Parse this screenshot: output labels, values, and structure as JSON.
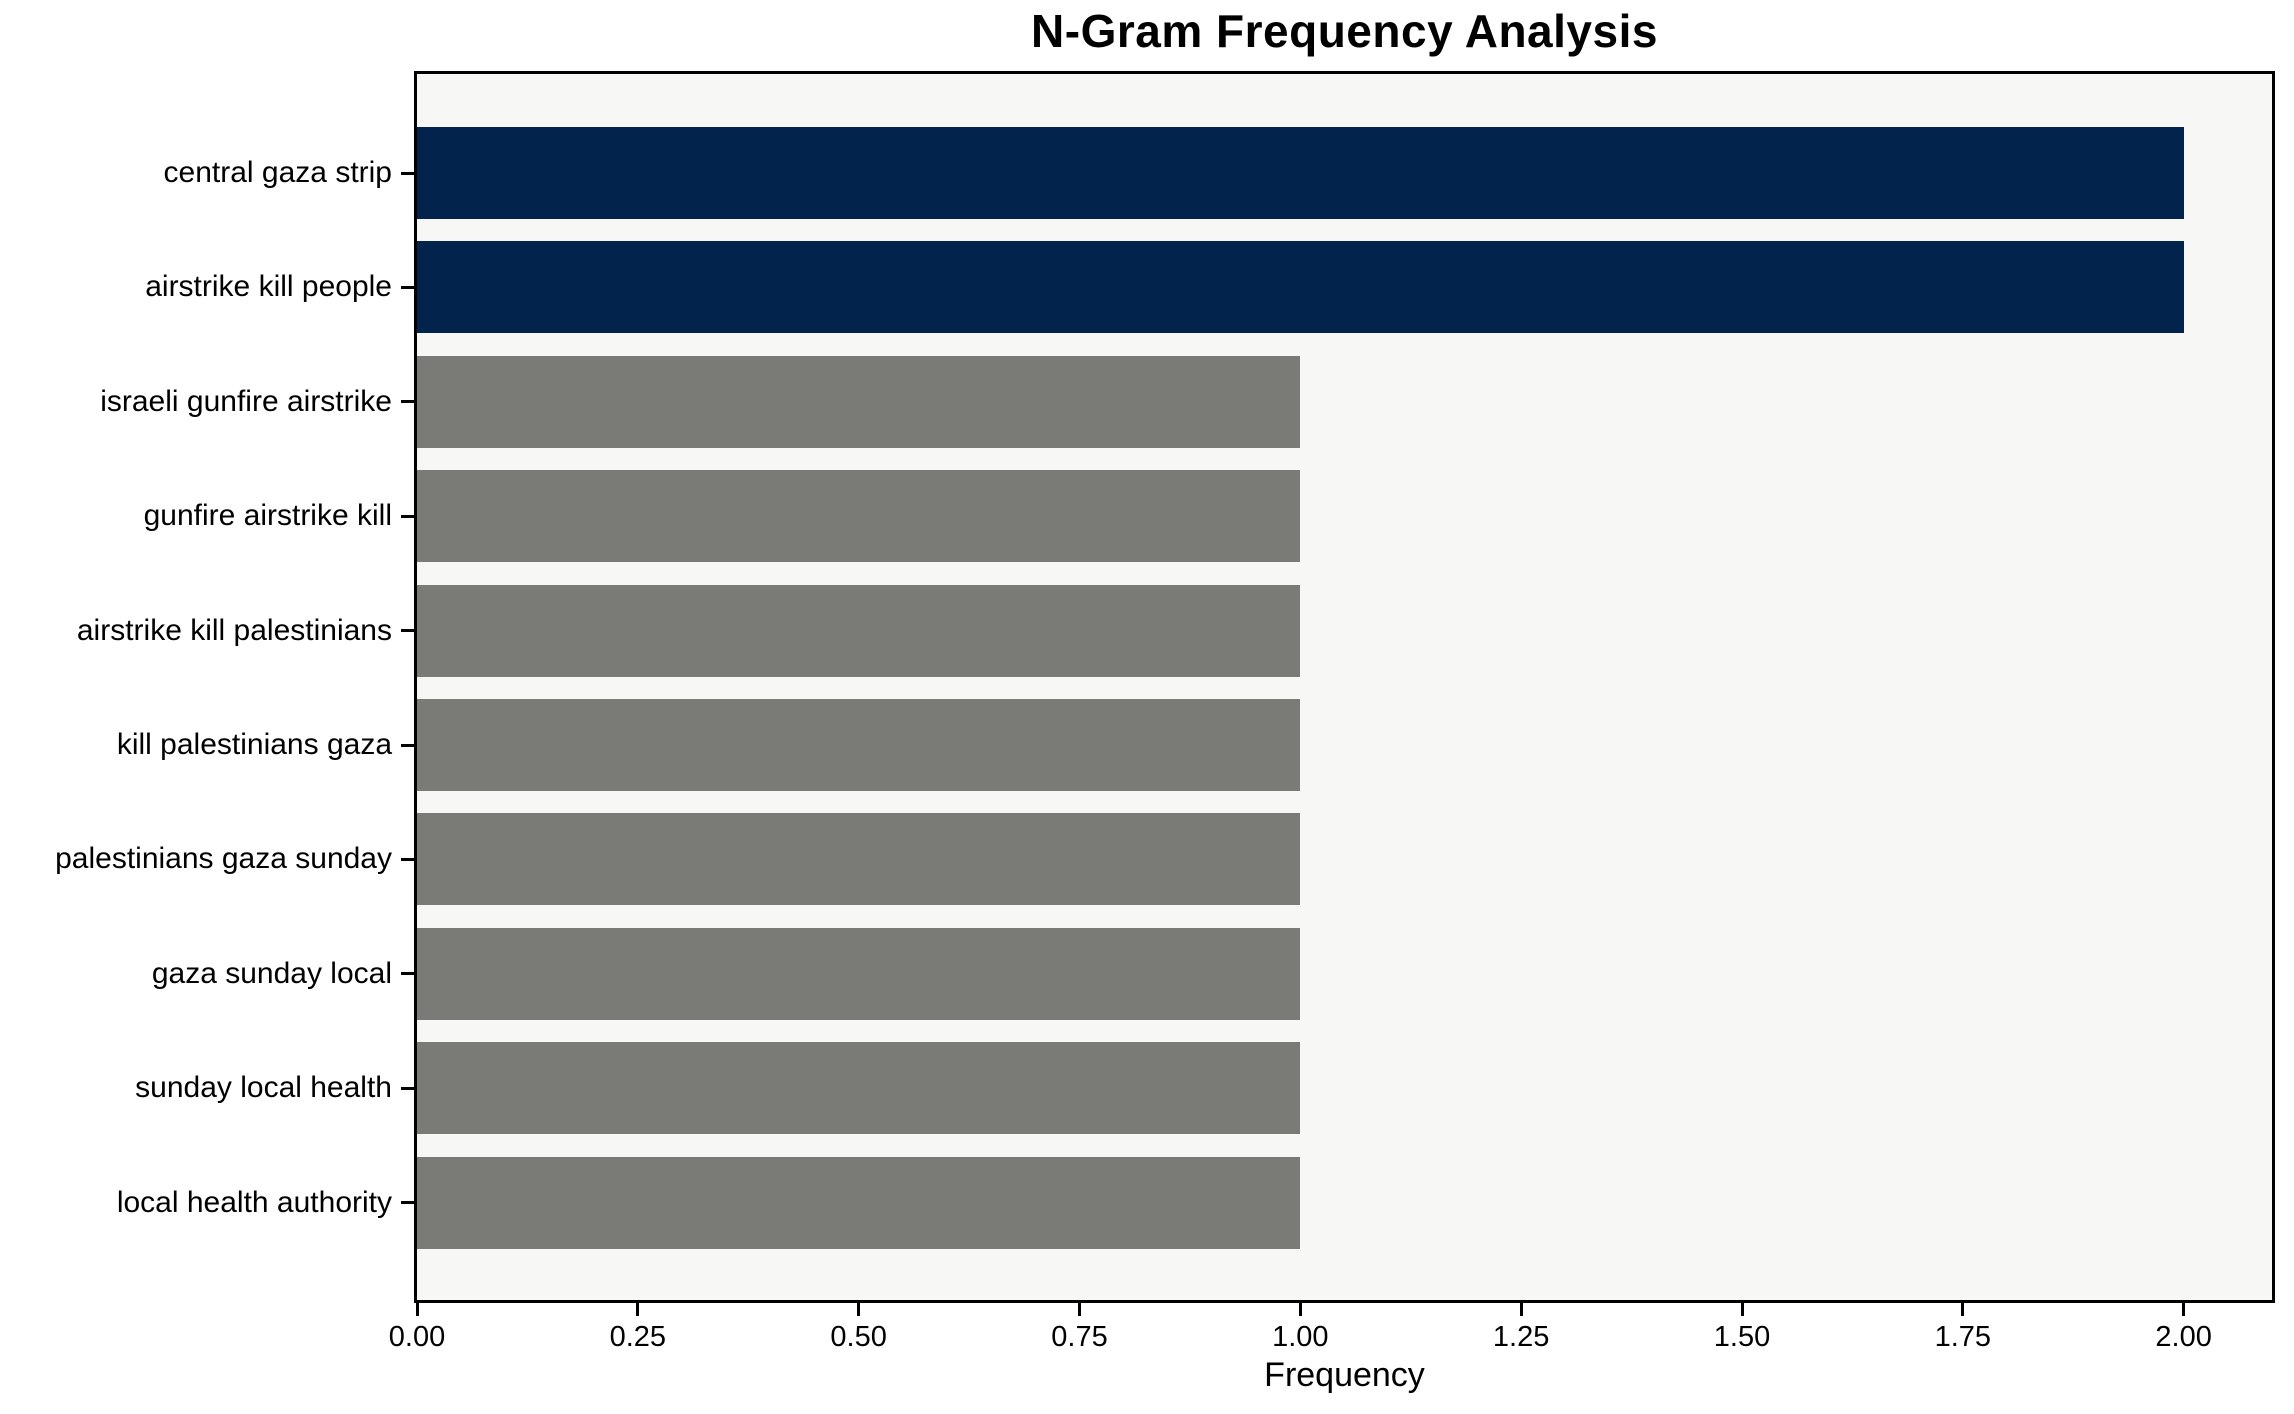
{
  "title": "N-Gram Frequency Analysis",
  "chart_data": {
    "type": "bar",
    "orientation": "horizontal",
    "title": "N-Gram Frequency Analysis",
    "xlabel": "Frequency",
    "ylabel": "",
    "categories": [
      "central gaza strip",
      "airstrike kill people",
      "israeli gunfire airstrike",
      "gunfire airstrike kill",
      "airstrike kill palestinians",
      "kill palestinians gaza",
      "palestinians gaza sunday",
      "gaza sunday local",
      "sunday local health",
      "local health authority"
    ],
    "values": [
      2,
      2,
      1,
      1,
      1,
      1,
      1,
      1,
      1,
      1
    ],
    "bar_colors": [
      "#02234c",
      "#02234c",
      "#7a7a77",
      "#7a7a77",
      "#7a7a77",
      "#7a7a77",
      "#7a7a77",
      "#7a7a77",
      "#7a7a77",
      "#7a7a77"
    ],
    "xticks": [
      "0.00",
      "0.25",
      "0.50",
      "0.75",
      "1.00",
      "1.25",
      "1.50",
      "1.75",
      "2.00"
    ],
    "xtick_values": [
      0,
      0.25,
      0.5,
      0.75,
      1.0,
      1.25,
      1.5,
      1.75,
      2.0
    ],
    "xlim": [
      0,
      2.1
    ],
    "grid": false,
    "legend": false,
    "colors": {
      "highlight_bar": "#02234c",
      "default_bar": "#7a7a77",
      "plot_background": "#f7f7f5",
      "axis": "#000000",
      "text": "#000000"
    }
  }
}
